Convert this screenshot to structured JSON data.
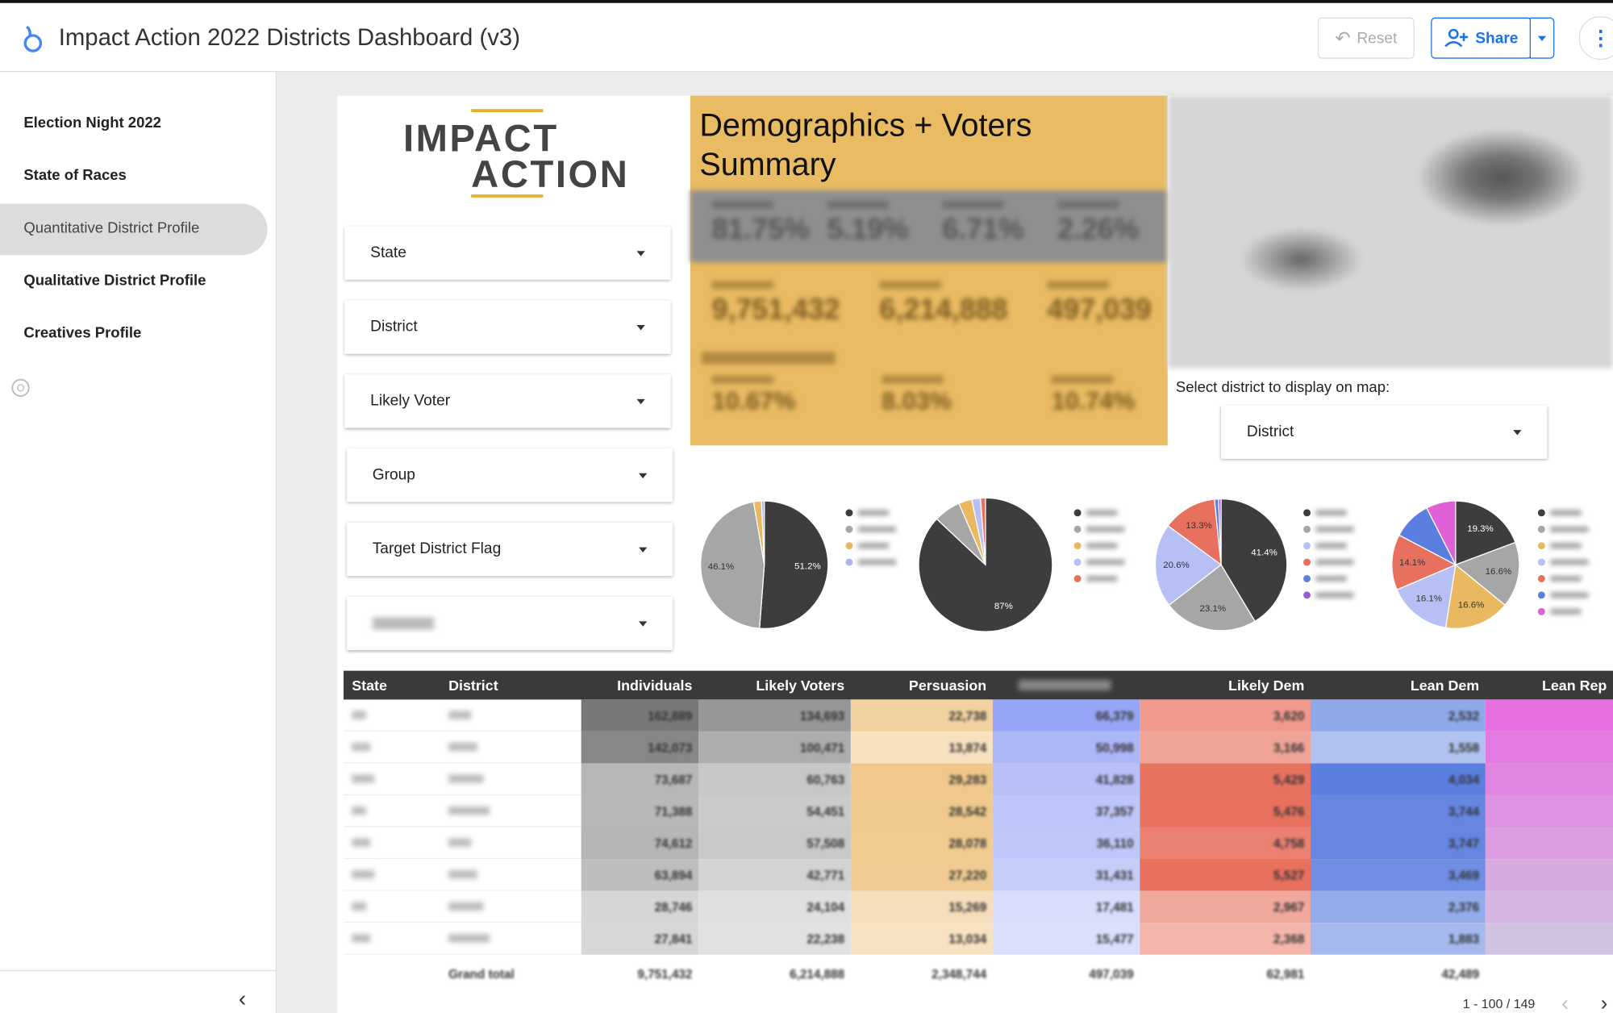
{
  "header": {
    "title": "Impact Action 2022 Districts Dashboard (v3)",
    "reset": "Reset",
    "share": "Share"
  },
  "nav": {
    "items": [
      "Election Night 2022",
      "State of Races",
      "Quantitative District Profile",
      "Qualitative District Profile",
      "Creatives Profile"
    ],
    "active": 2
  },
  "logo": {
    "lines": [
      "IMPACT",
      "ACTION"
    ]
  },
  "filters": [
    "State",
    "District",
    "Likely Voter",
    "Group",
    "Target District Flag"
  ],
  "summary": {
    "title": "Demographics + Voters Summary",
    "row1": [
      "81.75%",
      "5.19%",
      "6.71%",
      "2.26%"
    ],
    "row2": [
      "9,751,432",
      "6,214,888",
      "497,039"
    ],
    "row3": [
      "10.67%",
      "8.03%",
      "10.74%"
    ]
  },
  "map": {
    "prompt": "Select district to display on map:",
    "filter": "District"
  },
  "pies": [
    {
      "values": [
        51.2,
        46.1,
        2.0,
        0.7
      ],
      "value_labels": [
        "51.2%",
        "46.1%",
        null,
        null
      ],
      "colors": [
        "#3d3d3d",
        "#a6a6a6",
        "#e8b960",
        "#a9b4f0"
      ]
    },
    {
      "values": [
        87,
        6.5,
        3.2,
        2.1,
        1.2
      ],
      "value_labels": [
        "87%",
        null,
        null,
        null,
        null
      ],
      "colors": [
        "#3d3d3d",
        "#a6a6a6",
        "#e8b960",
        "#b7c0f4",
        "#e8705e"
      ]
    },
    {
      "values": [
        41.4,
        23.1,
        20.6,
        13.3,
        1.0,
        0.6
      ],
      "value_labels": [
        "41.4%",
        "23.1%",
        "20.6%",
        "13.3%",
        null,
        null
      ],
      "colors": [
        "#3d3d3d",
        "#a6a6a6",
        "#b7c0f4",
        "#e8705e",
        "#5b7fe0",
        "#9b59d0"
      ]
    },
    {
      "values": [
        19.3,
        16.6,
        16.6,
        16.1,
        14.1,
        9.8,
        7.5
      ],
      "value_labels": [
        "19.3%",
        "16.6%",
        "16.6%",
        "16.1%",
        "14.1%",
        null,
        null
      ],
      "colors": [
        "#3d3d3d",
        "#a6a6a6",
        "#e8b960",
        "#b7c0f4",
        "#e8705e",
        "#5b7fe0",
        "#e060d8"
      ]
    }
  ],
  "table": {
    "columns": [
      "State",
      "District",
      "Individuals",
      "Likely Voters",
      "Persuasion",
      "Likely Dem",
      "Lean Dem",
      "Lean Rep"
    ],
    "rows": [
      [
        "162,889",
        "134,693",
        "22,738",
        "66,379",
        "3,620",
        "2,532"
      ],
      [
        "142,073",
        "100,471",
        "13,874",
        "50,998",
        "3,166",
        "1,558"
      ],
      [
        "73,687",
        "60,763",
        "29,283",
        "41,828",
        "5,429",
        "4,034"
      ],
      [
        "71,388",
        "54,451",
        "28,542",
        "37,357",
        "5,476",
        "3,744"
      ],
      [
        "74,612",
        "57,508",
        "28,078",
        "36,110",
        "4,758",
        "3,747"
      ],
      [
        "63,894",
        "42,771",
        "27,220",
        "31,431",
        "5,527",
        "3,469"
      ],
      [
        "28,746",
        "24,104",
        "15,269",
        "17,481",
        "2,967",
        "2,376"
      ],
      [
        "27,841",
        "22,238",
        "13,034",
        "15,477",
        "2,368",
        "1,883"
      ]
    ],
    "grand_total": {
      "label": "Grand total",
      "values": [
        "9,751,432",
        "6,214,888",
        "2,348,744",
        "497,039",
        "62,981",
        "42,489"
      ]
    },
    "pagination": "1 - 100 / 149"
  }
}
